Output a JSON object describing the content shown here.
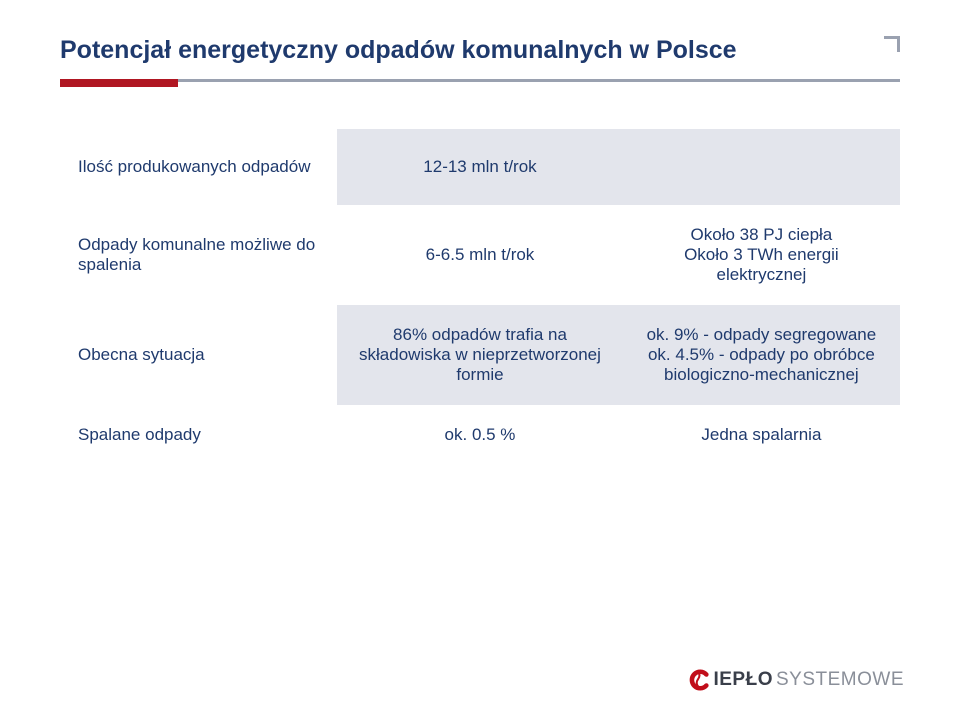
{
  "title": "Potencjał energetyczny odpadów komunalnych w Polsce",
  "colors": {
    "heading": "#1f3a6d",
    "rule_gray": "#9aa1b0",
    "rule_red": "#b01622",
    "band_bg": "#e3e5ec",
    "logo_red": "#c10e1a",
    "logo_dark": "#3a3f4a",
    "logo_gray": "#8a8f99",
    "background": "#ffffff"
  },
  "table": {
    "columns": [
      "label",
      "value",
      "note"
    ],
    "row_background_alternating": true,
    "rows": [
      {
        "label": "Ilość produkowanych odpadów",
        "value": "12-13 mln t/rok",
        "note": ""
      },
      {
        "label": "Odpady komunalne możliwe do spalenia",
        "value": "6-6.5 mln t/rok",
        "note": "Około 38 PJ ciepła\nOkoło 3 TWh energii elektrycznej"
      },
      {
        "label": "Obecna sytuacja",
        "value": "86% odpadów trafia na składowiska w nieprzetworzonej formie",
        "note": "ok. 9% - odpady segregowane ok. 4.5%  - odpady po obróbce biologiczno-mechanicznej"
      },
      {
        "label": "Spalane odpady",
        "value": "ok. 0.5 %",
        "note": "Jedna spalarnia"
      }
    ],
    "font_size": 17,
    "text_color": "#1f3a6d"
  },
  "logo": {
    "bold": "IEPŁO",
    "light": "SYSTEMOWE"
  }
}
